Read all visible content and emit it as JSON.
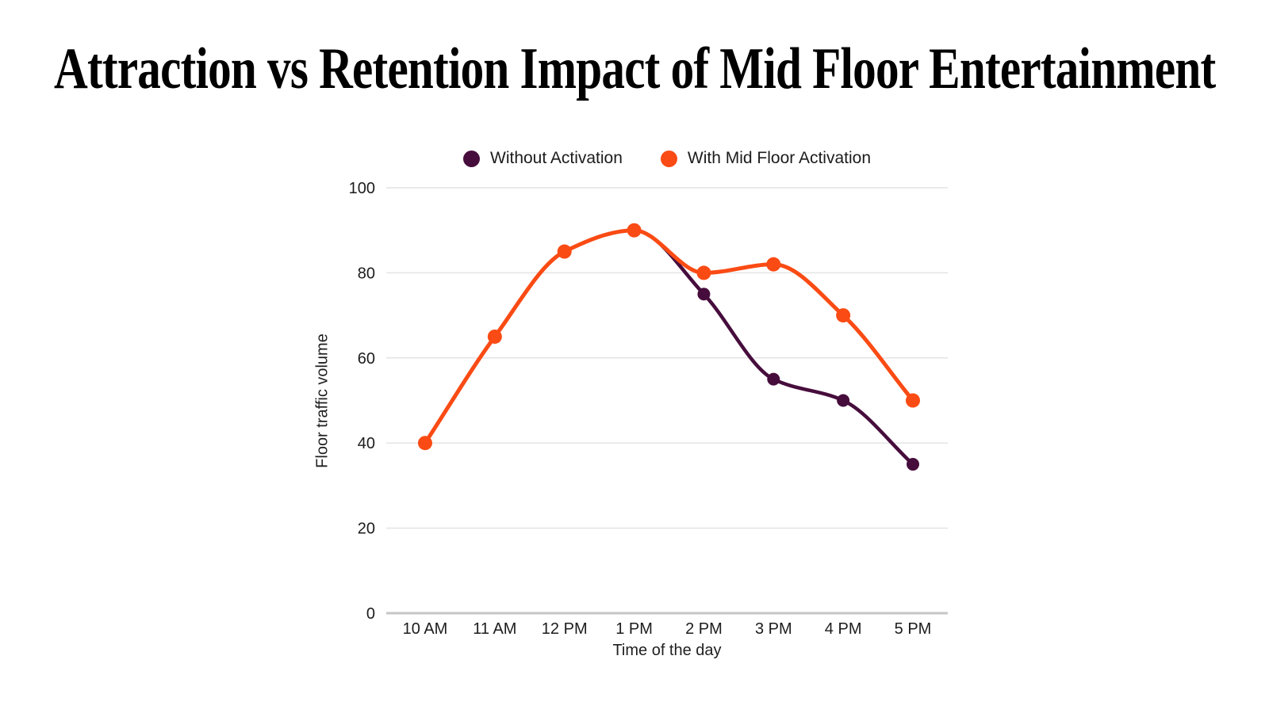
{
  "chart_data": {
    "type": "line",
    "title": "Attraction vs Retention Impact of Mid Floor Entertainment",
    "xlabel": "Time of the day",
    "ylabel": "Floor traffic volume",
    "categories": [
      "10 AM",
      "11 AM",
      "12 PM",
      "1 PM",
      "2 PM",
      "3 PM",
      "4 PM",
      "5 PM"
    ],
    "series": [
      {
        "name": "Without Activation",
        "color": "#460d3c",
        "values": [
          40,
          65,
          85,
          90,
          75,
          55,
          50,
          35
        ]
      },
      {
        "name": "With Mid Floor Activation",
        "color": "#fa4b14",
        "values": [
          40,
          65,
          85,
          90,
          80,
          82,
          70,
          50
        ]
      }
    ],
    "ylim": [
      0,
      100
    ],
    "yticks": [
      0,
      20,
      40,
      60,
      80,
      100
    ],
    "grid": true,
    "legend_position": "top",
    "background_color": "#ffffff",
    "grid_color": "#e4e4e4",
    "axis_line_color": "#c6c6c6",
    "text_color": "#1c1c1c",
    "curve": "monotone"
  }
}
